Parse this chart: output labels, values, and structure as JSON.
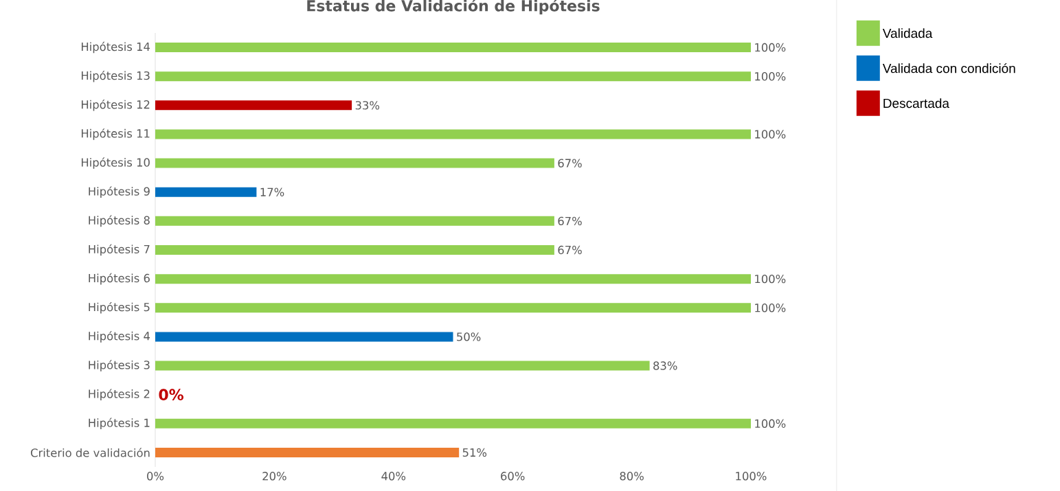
{
  "chart_data": {
    "type": "bar",
    "orientation": "horizontal",
    "title": "Estatus de Validación de Hipótesis",
    "categories": [
      "Hipótesis 14",
      "Hipótesis 13",
      "Hipótesis 12",
      "Hipótesis 11",
      "Hipótesis 10",
      "Hipótesis 9",
      "Hipótesis 8",
      "Hipótesis 7",
      "Hipótesis 6",
      "Hipótesis 5",
      "Hipótesis 4",
      "Hipótesis 3",
      "Hipótesis 2",
      "Hipótesis 1",
      "Criterio de validación"
    ],
    "series": [
      {
        "name": "Validada",
        "color": "#92d050",
        "values": [
          100,
          100,
          null,
          100,
          67,
          null,
          67,
          67,
          100,
          100,
          null,
          83,
          null,
          100,
          null
        ],
        "value_labels": [
          "100%",
          "100%",
          null,
          "100%",
          "67%",
          null,
          "67%",
          "67%",
          "100%",
          "100%",
          null,
          "83%",
          null,
          "100%",
          null
        ]
      },
      {
        "name": "Validada con condición",
        "color": "#0070c0",
        "values": [
          null,
          null,
          null,
          null,
          null,
          17,
          null,
          null,
          null,
          null,
          50,
          null,
          null,
          null,
          null
        ],
        "value_labels": [
          null,
          null,
          null,
          null,
          null,
          "17%",
          null,
          null,
          null,
          null,
          "50%",
          null,
          null,
          null,
          null
        ]
      },
      {
        "name": "Descartada",
        "color": "#c00000",
        "values": [
          null,
          null,
          33,
          null,
          null,
          null,
          null,
          null,
          null,
          null,
          null,
          null,
          0,
          null,
          null
        ],
        "value_labels": [
          null,
          null,
          "33%",
          null,
          null,
          null,
          null,
          null,
          null,
          null,
          null,
          null,
          "0%",
          null,
          null
        ]
      },
      {
        "color": "#ed7d31",
        "values": [
          null,
          null,
          null,
          null,
          null,
          null,
          null,
          null,
          null,
          null,
          null,
          null,
          null,
          null,
          51
        ],
        "value_labels": [
          null,
          null,
          null,
          null,
          null,
          null,
          null,
          null,
          null,
          null,
          null,
          null,
          null,
          null,
          "51%"
        ]
      }
    ],
    "xlim": [
      0,
      100
    ],
    "xticks": [
      {
        "value": 0,
        "label": "0%"
      },
      {
        "value": 20,
        "label": "20%"
      },
      {
        "value": 40,
        "label": "40%"
      },
      {
        "value": 60,
        "label": "60%"
      },
      {
        "value": 80,
        "label": "80%"
      },
      {
        "value": 100,
        "label": "100%"
      }
    ],
    "legend": "right",
    "grid": false
  }
}
